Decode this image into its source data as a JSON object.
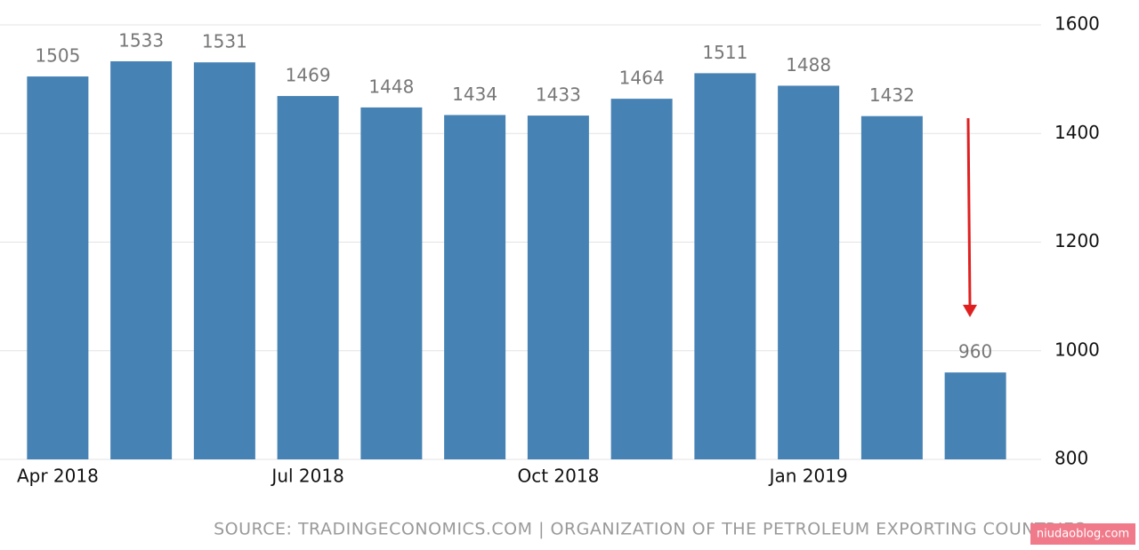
{
  "chart_data": {
    "type": "bar",
    "categories": [
      "Apr 2018",
      null,
      null,
      "Jul 2018",
      null,
      null,
      "Oct 2018",
      null,
      null,
      "Jan 2019",
      null,
      null
    ],
    "values": [
      1505,
      1533,
      1531,
      1469,
      1448,
      1434,
      1433,
      1464,
      1511,
      1488,
      1432,
      960
    ],
    "color": "#4682b4",
    "ylim": [
      800,
      1600
    ],
    "yticks": [
      800,
      1000,
      1200,
      1400,
      1600
    ],
    "grid": true,
    "source": "SOURCE: TRADINGECONOMICS.COM | ORGANIZATION OF THE PETROLEUM EXPORTING COUNTRIES",
    "watermark": "niudaoblog.com"
  }
}
